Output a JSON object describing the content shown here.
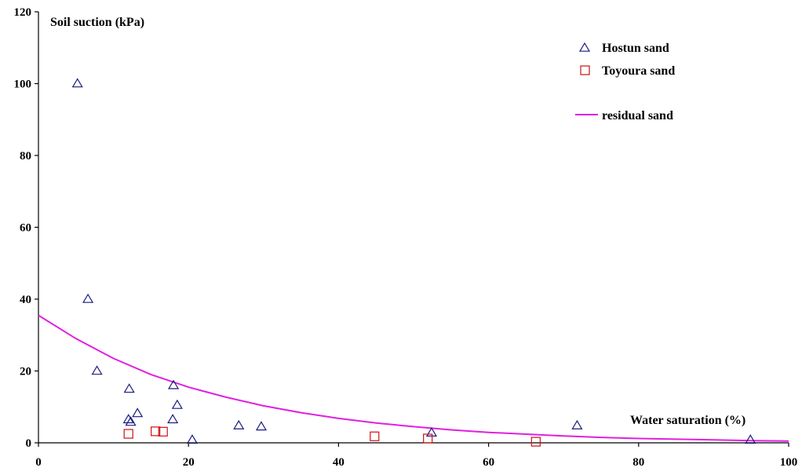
{
  "chart_data": {
    "type": "scatter",
    "ylabel": "Soil suction (kPa)",
    "xlabel": "Water saturation (%)",
    "xlim": [
      0,
      100
    ],
    "ylim": [
      0,
      120
    ],
    "x_ticks": [
      "0",
      "20",
      "40",
      "60",
      "80",
      "100"
    ],
    "y_ticks": [
      "0",
      "20",
      "40",
      "60",
      "80",
      "100",
      "120"
    ],
    "grid": false,
    "legend_position": "top-right",
    "series": [
      {
        "name": "Hostun sand",
        "marker": "triangle",
        "color": "#1a1a80",
        "points": [
          {
            "x": 5.2,
            "y": 100
          },
          {
            "x": 6.6,
            "y": 40
          },
          {
            "x": 7.8,
            "y": 20
          },
          {
            "x": 12.1,
            "y": 15
          },
          {
            "x": 12.0,
            "y": 6.5
          },
          {
            "x": 12.3,
            "y": 5.8
          },
          {
            "x": 13.2,
            "y": 8.2
          },
          {
            "x": 18.0,
            "y": 16
          },
          {
            "x": 18.5,
            "y": 10.5
          },
          {
            "x": 17.9,
            "y": 6.5
          },
          {
            "x": 20.5,
            "y": 0.8
          },
          {
            "x": 26.7,
            "y": 4.8
          },
          {
            "x": 29.7,
            "y": 4.5
          },
          {
            "x": 52.4,
            "y": 2.8
          },
          {
            "x": 71.8,
            "y": 4.8
          },
          {
            "x": 94.9,
            "y": 0.8
          }
        ]
      },
      {
        "name": "Toyoura sand",
        "marker": "square",
        "color": "#cc1111",
        "points": [
          {
            "x": 12.0,
            "y": 2.5
          },
          {
            "x": 15.6,
            "y": 3.2
          },
          {
            "x": 16.6,
            "y": 3.1
          },
          {
            "x": 44.8,
            "y": 1.8
          },
          {
            "x": 51.9,
            "y": 1.2
          },
          {
            "x": 66.3,
            "y": 0.3
          }
        ]
      },
      {
        "name": "residual sand",
        "marker": "line",
        "color": "#e020e0",
        "points": [
          {
            "x": 0,
            "y": 35.5
          },
          {
            "x": 5,
            "y": 29.0
          },
          {
            "x": 10,
            "y": 23.5
          },
          {
            "x": 15,
            "y": 19.0
          },
          {
            "x": 20,
            "y": 15.5
          },
          {
            "x": 25,
            "y": 12.7
          },
          {
            "x": 30,
            "y": 10.3
          },
          {
            "x": 35,
            "y": 8.4
          },
          {
            "x": 40,
            "y": 6.8
          },
          {
            "x": 45,
            "y": 5.5
          },
          {
            "x": 50,
            "y": 4.5
          },
          {
            "x": 55,
            "y": 3.6
          },
          {
            "x": 60,
            "y": 2.9
          },
          {
            "x": 65,
            "y": 2.4
          },
          {
            "x": 70,
            "y": 1.9
          },
          {
            "x": 75,
            "y": 1.5
          },
          {
            "x": 80,
            "y": 1.2
          },
          {
            "x": 85,
            "y": 1.0
          },
          {
            "x": 90,
            "y": 0.8
          },
          {
            "x": 95,
            "y": 0.6
          },
          {
            "x": 100,
            "y": 0.5
          }
        ]
      }
    ]
  }
}
